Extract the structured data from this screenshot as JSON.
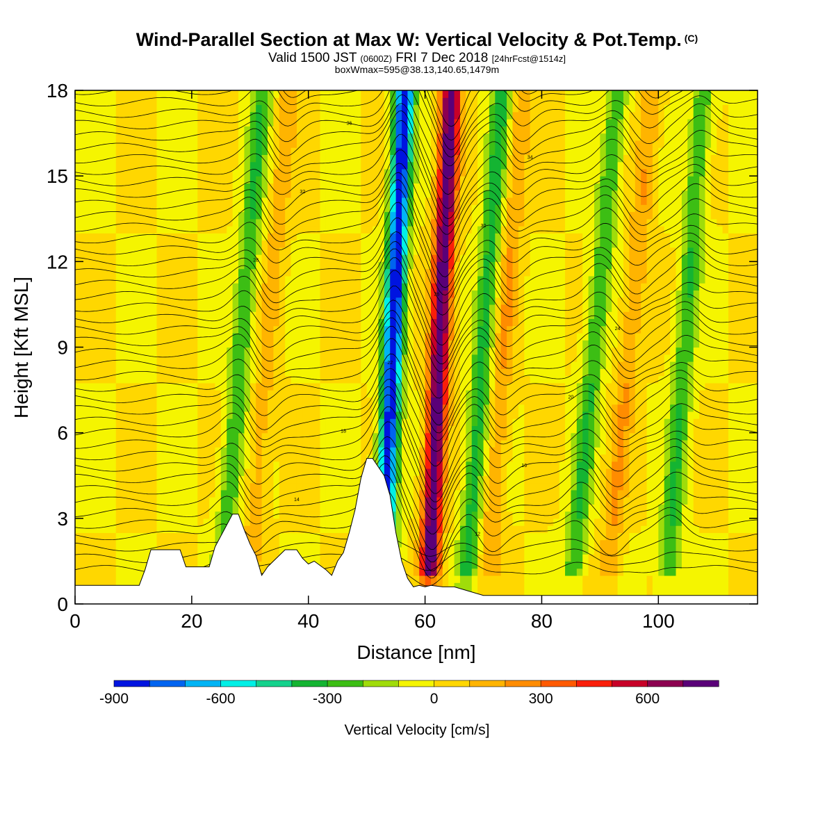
{
  "header": {
    "title": "Wind-Parallel Section at Max W: Vertical Velocity & Pot.Temp.",
    "copyright": "(C)",
    "valid_main": "Valid 1500 JST",
    "valid_utc": "(0600Z)",
    "valid_date": "FRI 7 Dec 2018",
    "forecast": "[24hrFcst@1514z]",
    "box_info": "boxWmax=595@38.13,140.65,1479m"
  },
  "colors": {
    "scale": [
      "#0014e0",
      "#0064f0",
      "#00b4f5",
      "#00f0e6",
      "#14d28c",
      "#14b432",
      "#3cbe14",
      "#a0dc0a",
      "#f5f500",
      "#ffd700",
      "#ffb400",
      "#ff8c00",
      "#ff5a00",
      "#fa1e0a",
      "#c80028",
      "#8c0050",
      "#5a0078"
    ],
    "terrain": "#ffffff"
  },
  "chart_data": {
    "type": "heatmap",
    "title": "Wind-Parallel Section at Max W: Vertical Velocity & Pot.Temp.",
    "xlabel": "Distance [nm]",
    "ylabel": "Height [Kft MSL]",
    "xlim": [
      0,
      117
    ],
    "ylim": [
      0,
      18
    ],
    "x_ticks": [
      0,
      20,
      40,
      60,
      80,
      100
    ],
    "y_ticks": [
      0,
      3,
      6,
      9,
      12,
      15,
      18
    ],
    "colorbar": {
      "label": "Vertical Velocity [cm/s]",
      "bounds": [
        -900,
        800
      ],
      "step": 100,
      "tick_labels": [
        "-900",
        "-600",
        "-300",
        "0",
        "300",
        "600"
      ]
    },
    "vertical_velocity_bands": [
      {
        "x_center": 54.5,
        "tilt_nm_per_kft": 0.22,
        "peak_cm_s": -900,
        "label": "downdraft"
      },
      {
        "x_center": 62.5,
        "tilt_nm_per_kft": 0.22,
        "peak_cm_s": 800,
        "label": "updraft"
      },
      {
        "x_center": 70,
        "tilt_nm_per_kft": 0.35,
        "peak_cm_s": -350
      },
      {
        "x_center": 73.5,
        "tilt_nm_per_kft": 0.35,
        "peak_cm_s": 200
      },
      {
        "x_center": 89,
        "tilt_nm_per_kft": 0.45,
        "peak_cm_s": -300
      },
      {
        "x_center": 95,
        "tilt_nm_per_kft": 0.45,
        "peak_cm_s": 200
      },
      {
        "x_center": 104.5,
        "tilt_nm_per_kft": 0.35,
        "peak_cm_s": -300
      },
      {
        "x_center": 28.5,
        "tilt_nm_per_kft": 0.4,
        "peak_cm_s": -300
      },
      {
        "x_center": 33,
        "tilt_nm_per_kft": 0.4,
        "peak_cm_s": 150
      }
    ],
    "potential_temperature_contour_labels": [
      "10",
      "12",
      "14",
      "16",
      "18",
      "20",
      "22",
      "24",
      "26",
      "28",
      "30",
      "32",
      "34",
      "36",
      "38"
    ],
    "terrain_profile": {
      "x": [
        0,
        11,
        12,
        13,
        18,
        19,
        23,
        24,
        27,
        28,
        29,
        30,
        31,
        32,
        33,
        34,
        36,
        38,
        39,
        40,
        41,
        43,
        44,
        45,
        46,
        47,
        48,
        49,
        50,
        51,
        53,
        54,
        55,
        56,
        57,
        58,
        59,
        60,
        61,
        63,
        64,
        65,
        70,
        71,
        117
      ],
      "height_kft": [
        0.65,
        0.65,
        1.2,
        1.9,
        1.9,
        1.3,
        1.3,
        2.0,
        3.15,
        3.15,
        2.6,
        2.1,
        1.7,
        1.0,
        1.3,
        1.5,
        1.9,
        1.9,
        1.6,
        1.4,
        1.5,
        1.2,
        1.0,
        1.5,
        1.8,
        2.5,
        3.3,
        4.4,
        5.1,
        5.1,
        4.5,
        3.8,
        2.5,
        1.5,
        0.9,
        0.6,
        0.65,
        0.6,
        0.65,
        0.6,
        0.6,
        0.6,
        0.3,
        0.3,
        0.3
      ]
    }
  }
}
